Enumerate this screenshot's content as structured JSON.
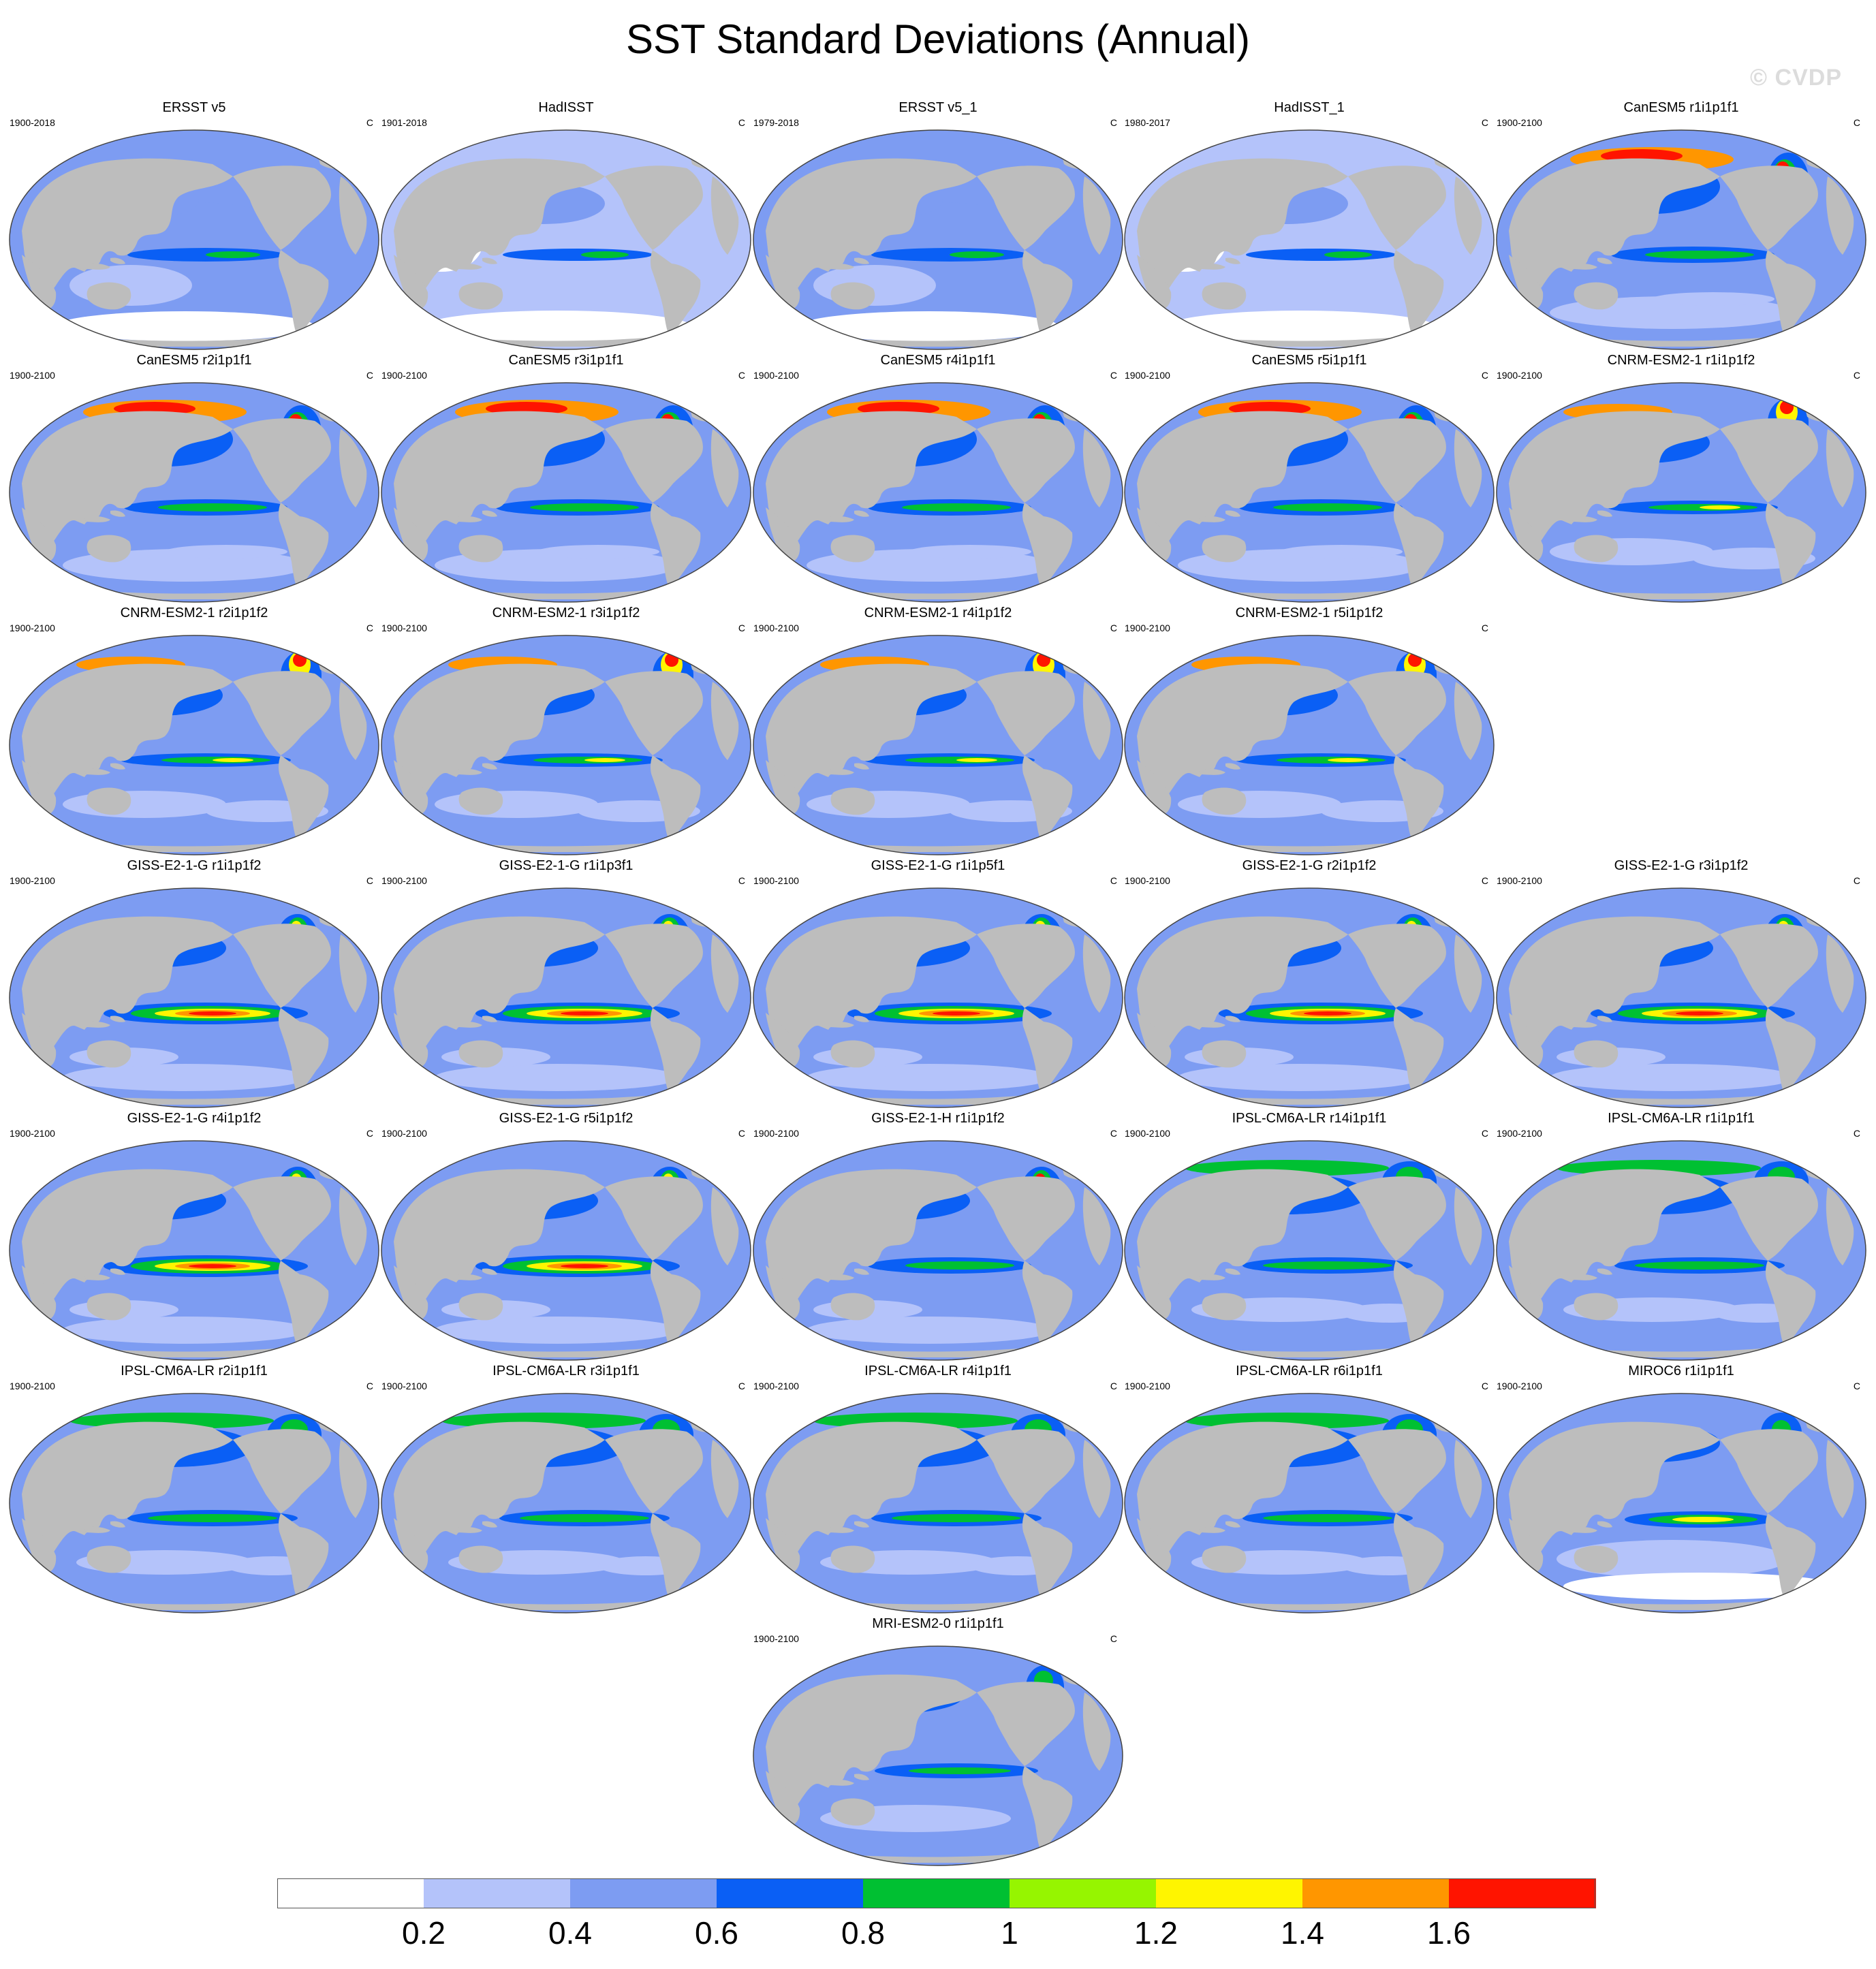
{
  "title": "SST Standard Deviations (Annual)",
  "watermark": "© CVDP",
  "colors": {
    "land": "#bdbdbd",
    "coast": "#444444"
  },
  "panels": [
    {
      "title": "ERSST v5",
      "period": "1900-2018",
      "units": "C",
      "style": "obs1"
    },
    {
      "title": "HadISST",
      "period": "1901-2018",
      "units": "C",
      "style": "obs2"
    },
    {
      "title": "ERSST v5_1",
      "period": "1979-2018",
      "units": "C",
      "style": "obs1"
    },
    {
      "title": "HadISST_1",
      "period": "1980-2017",
      "units": "C",
      "style": "obs2"
    },
    {
      "title": "CanESM5 r1i1p1f1",
      "period": "1900-2100",
      "units": "C",
      "style": "canesm"
    },
    {
      "title": "CanESM5 r2i1p1f1",
      "period": "1900-2100",
      "units": "C",
      "style": "canesm"
    },
    {
      "title": "CanESM5 r3i1p1f1",
      "period": "1900-2100",
      "units": "C",
      "style": "canesm"
    },
    {
      "title": "CanESM5 r4i1p1f1",
      "period": "1900-2100",
      "units": "C",
      "style": "canesm"
    },
    {
      "title": "CanESM5 r5i1p1f1",
      "period": "1900-2100",
      "units": "C",
      "style": "canesm"
    },
    {
      "title": "CNRM-ESM2-1 r1i1p1f2",
      "period": "1900-2100",
      "units": "C",
      "style": "cnrm"
    },
    {
      "title": "CNRM-ESM2-1 r2i1p1f2",
      "period": "1900-2100",
      "units": "C",
      "style": "cnrm"
    },
    {
      "title": "CNRM-ESM2-1 r3i1p1f2",
      "period": "1900-2100",
      "units": "C",
      "style": "cnrm"
    },
    {
      "title": "CNRM-ESM2-1 r4i1p1f2",
      "period": "1900-2100",
      "units": "C",
      "style": "cnrm"
    },
    {
      "title": "CNRM-ESM2-1 r5i1p1f2",
      "period": "1900-2100",
      "units": "C",
      "style": "cnrm"
    },
    {
      "title": "GISS-E2-1-G r1i1p1f2",
      "period": "1900-2100",
      "units": "C",
      "style": "giss"
    },
    {
      "title": "GISS-E2-1-G r1i1p3f1",
      "period": "1900-2100",
      "units": "C",
      "style": "giss"
    },
    {
      "title": "GISS-E2-1-G r1i1p5f1",
      "period": "1900-2100",
      "units": "C",
      "style": "giss"
    },
    {
      "title": "GISS-E2-1-G r2i1p1f2",
      "period": "1900-2100",
      "units": "C",
      "style": "giss"
    },
    {
      "title": "GISS-E2-1-G r3i1p1f2",
      "period": "1900-2100",
      "units": "C",
      "style": "giss"
    },
    {
      "title": "GISS-E2-1-G r4i1p1f2",
      "period": "1900-2100",
      "units": "C",
      "style": "giss"
    },
    {
      "title": "GISS-E2-1-G r5i1p1f2",
      "period": "1900-2100",
      "units": "C",
      "style": "giss"
    },
    {
      "title": "GISS-E2-1-H r1i1p1f2",
      "period": "1900-2100",
      "units": "C",
      "style": "gissh"
    },
    {
      "title": "IPSL-CM6A-LR r14i1p1f1",
      "period": "1900-2100",
      "units": "C",
      "style": "ipsl"
    },
    {
      "title": "IPSL-CM6A-LR r1i1p1f1",
      "period": "1900-2100",
      "units": "C",
      "style": "ipsl"
    },
    {
      "title": "IPSL-CM6A-LR r2i1p1f1",
      "period": "1900-2100",
      "units": "C",
      "style": "ipsl"
    },
    {
      "title": "IPSL-CM6A-LR r3i1p1f1",
      "period": "1900-2100",
      "units": "C",
      "style": "ipsl"
    },
    {
      "title": "IPSL-CM6A-LR r4i1p1f1",
      "period": "1900-2100",
      "units": "C",
      "style": "ipsl"
    },
    {
      "title": "IPSL-CM6A-LR r6i1p1f1",
      "period": "1900-2100",
      "units": "C",
      "style": "ipsl"
    },
    {
      "title": "MIROC6 r1i1p1f1",
      "period": "1900-2100",
      "units": "C",
      "style": "miroc"
    },
    {
      "title": "MRI-ESM2-0 r1i1p1f1",
      "period": "1900-2100",
      "units": "C",
      "style": "mri"
    }
  ],
  "colorbar": {
    "colors": [
      "#ffffff",
      "#b4c3fa",
      "#7d9cf2",
      "#0a5ff5",
      "#00c032",
      "#96f500",
      "#fff500",
      "#ff9600",
      "#ff1400"
    ],
    "tick_labels": [
      "0.2",
      "0.4",
      "0.6",
      "0.8",
      "1",
      "1.2",
      "1.4",
      "1.6"
    ]
  }
}
